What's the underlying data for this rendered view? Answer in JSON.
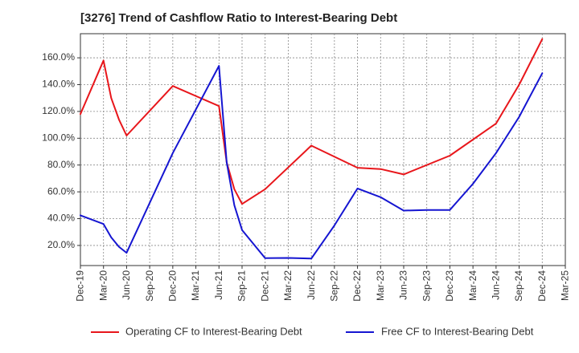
{
  "title": "[3276]  Trend of Cashflow Ratio to Interest-Bearing Debt",
  "chart_data": {
    "type": "line",
    "title": "[3276]  Trend of Cashflow Ratio to Interest-Bearing Debt",
    "xlabel": "",
    "ylabel": "",
    "x_tick_labels": [
      "Dec-19",
      "Mar-20",
      "Jun-20",
      "Sep-20",
      "Dec-20",
      "Mar-21",
      "Jun-21",
      "Sep-21",
      "Dec-21",
      "Mar-22",
      "Jun-22",
      "Sep-22",
      "Dec-22",
      "Mar-23",
      "Jun-23",
      "Sep-23",
      "Dec-23",
      "Mar-24",
      "Jun-24",
      "Sep-24",
      "Dec-24",
      "Mar-25"
    ],
    "y_tick_labels": [
      "20.0%",
      "40.0%",
      "60.0%",
      "80.0%",
      "100.0%",
      "120.0%",
      "140.0%",
      "160.0%"
    ],
    "y_ticks": [
      20,
      40,
      60,
      80,
      100,
      120,
      140,
      160
    ],
    "ylim": [
      5,
      178
    ],
    "y_unit": "%",
    "grid": true,
    "legend_position": "bottom",
    "series": [
      {
        "name": "Operating CF to Interest-Bearing Debt",
        "color": "#e8161b",
        "points": [
          [
            "Dec-19",
            118
          ],
          [
            "Mar-20",
            158
          ],
          [
            "Apr-20",
            130
          ],
          [
            "May-20",
            114
          ],
          [
            "Jun-20",
            102
          ],
          [
            "Dec-20",
            139
          ],
          [
            "Jun-21",
            124
          ],
          [
            "Jul-21",
            82
          ],
          [
            "Aug-21",
            62
          ],
          [
            "Sep-21",
            51
          ],
          [
            "Dec-21",
            62
          ],
          [
            "Jun-22",
            94.5
          ],
          [
            "Dec-22",
            78
          ],
          [
            "Mar-23",
            77
          ],
          [
            "Jun-23",
            73
          ],
          [
            "Dec-23",
            87
          ],
          [
            "Jun-24",
            111
          ],
          [
            "Sep-24",
            140
          ],
          [
            "Dec-24",
            174
          ]
        ]
      },
      {
        "name": "Free CF to Interest-Bearing Debt",
        "color": "#1515d1",
        "points": [
          [
            "Dec-19",
            42.5
          ],
          [
            "Mar-20",
            36
          ],
          [
            "Apr-20",
            26
          ],
          [
            "May-20",
            19
          ],
          [
            "Jun-20",
            14.5
          ],
          [
            "Dec-20",
            89
          ],
          [
            "Jun-21",
            154
          ],
          [
            "Jul-21",
            82
          ],
          [
            "Aug-21",
            50
          ],
          [
            "Sep-21",
            31.5
          ],
          [
            "Dec-21",
            10.5
          ],
          [
            "Mar-22",
            10.7
          ],
          [
            "Jun-22",
            10.2
          ],
          [
            "Sep-22",
            35
          ],
          [
            "Dec-22",
            62.5
          ],
          [
            "Mar-23",
            56
          ],
          [
            "Jun-23",
            46
          ],
          [
            "Sep-23",
            46.5
          ],
          [
            "Dec-23",
            46.5
          ],
          [
            "Mar-24",
            66
          ],
          [
            "Jun-24",
            89
          ],
          [
            "Sep-24",
            116
          ],
          [
            "Dec-24",
            148.5
          ]
        ]
      }
    ]
  }
}
